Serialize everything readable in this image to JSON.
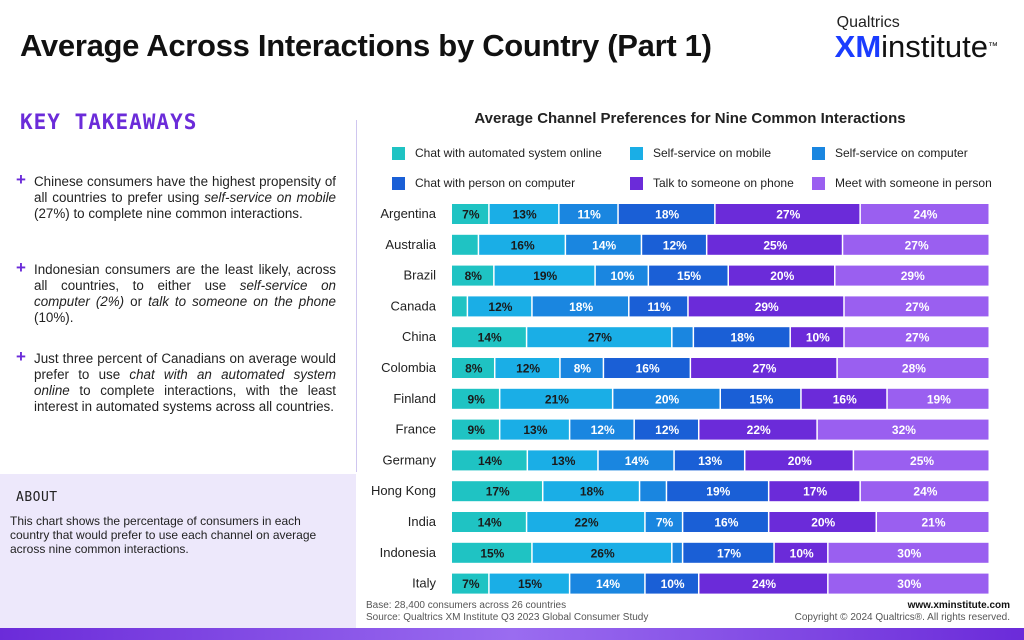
{
  "page": {
    "title": "Average Across Interactions by Country (Part 1)",
    "logo_top": "Qualtrics",
    "logo_xm": "XM",
    "logo_rest": "institute",
    "logo_tm": "™"
  },
  "takeaways": {
    "title": "KEY TAKEAWAYS",
    "items": [
      {
        "plus": "+",
        "pre": "Chinese consumers have the highest propensity of all countries to prefer using ",
        "em": "self-service on mobile",
        "post": " (27%) to complete nine common interactions."
      },
      {
        "plus": "+",
        "pre": "Indonesian consumers are the least likely, across all countries, to either use ",
        "em": "self-service on computer (2%)",
        "mid": " or ",
        "em2": "talk to someone on the phone",
        "post": " (10%)."
      },
      {
        "plus": "+",
        "pre": "Just three percent of Canadians on average would prefer to use ",
        "em": "chat with an automated system online",
        "post": " to complete interactions, with the least interest in automated systems across all countries."
      }
    ]
  },
  "about": {
    "title": "ABOUT",
    "text": "This chart shows the percentage of consumers in each country that would prefer to use each channel on average across nine common interactions."
  },
  "footer": {
    "base": "Base: 28,400 consumers across 26 countries",
    "source": "Source: Qualtrics XM Institute Q3 2023 Global Consumer Study",
    "website": "www.xminstitute.com",
    "copyright": "Copyright © 2024 Qualtrics®. All rights reserved."
  },
  "colors": {
    "accent": "#6b2bd9",
    "series": [
      "#1fc3c3",
      "#1aaee6",
      "#1a86e0",
      "#1a5fd6",
      "#6b2bd9",
      "#9a5ff0"
    ]
  },
  "chart_data": {
    "type": "bar",
    "orientation": "horizontal-stacked-100",
    "title": "Average Channel Preferences for Nine Common Interactions",
    "categories": [
      "Argentina",
      "Australia",
      "Brazil",
      "Canada",
      "China",
      "Colombia",
      "Finland",
      "France",
      "Germany",
      "Hong Kong",
      "India",
      "Indonesia",
      "Italy"
    ],
    "series": [
      {
        "name": "Chat with automated system online",
        "values": [
          7,
          5,
          8,
          3,
          14,
          8,
          9,
          9,
          14,
          17,
          14,
          15,
          7
        ]
      },
      {
        "name": "Self-service on mobile",
        "values": [
          13,
          16,
          19,
          12,
          27,
          12,
          21,
          13,
          13,
          18,
          22,
          26,
          15
        ]
      },
      {
        "name": "Self-service on computer",
        "values": [
          11,
          14,
          10,
          18,
          4,
          8,
          20,
          12,
          14,
          5,
          7,
          2,
          14
        ]
      },
      {
        "name": "Chat with person on computer",
        "values": [
          18,
          12,
          15,
          11,
          18,
          16,
          15,
          12,
          13,
          19,
          16,
          17,
          10
        ]
      },
      {
        "name": "Talk to someone on phone",
        "values": [
          27,
          25,
          20,
          29,
          10,
          27,
          16,
          22,
          20,
          17,
          20,
          10,
          24
        ]
      },
      {
        "name": "Meet with someone in person",
        "values": [
          24,
          27,
          29,
          27,
          27,
          28,
          19,
          32,
          25,
          24,
          21,
          30,
          30
        ]
      }
    ],
    "labels_hidden_below": 6,
    "legend_position": "top"
  }
}
